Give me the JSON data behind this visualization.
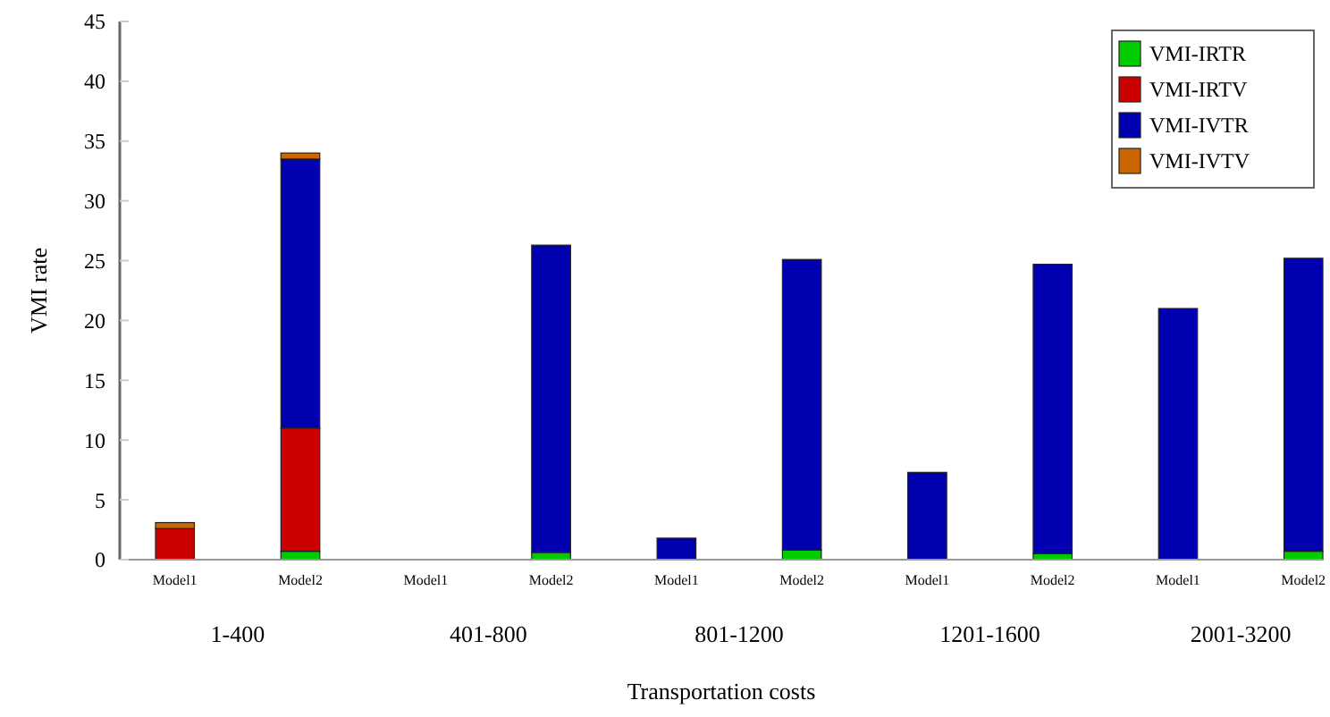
{
  "chart_data": {
    "type": "bar",
    "stacked": true,
    "xlabel": "Transportation costs",
    "ylabel": "VMI rate",
    "categories": [
      "Model1",
      "Model2",
      "Model1",
      "Model2",
      "Model1",
      "Model2",
      "Model1",
      "Model2",
      "Model1",
      "Model2"
    ],
    "series": [
      {
        "name": "VMI-IRTR",
        "color": "#00cc00",
        "values": [
          0,
          0.7,
          0,
          0.6,
          0,
          0.8,
          0,
          0.5,
          0,
          0.7
        ]
      },
      {
        "name": "VMI-IRTV",
        "color": "#cc0000",
        "values": [
          2.6,
          10.3,
          0,
          0,
          0,
          0,
          0,
          0,
          0,
          0
        ]
      },
      {
        "name": "VMI-IVTR",
        "color": "#0000b0",
        "values": [
          0,
          22.5,
          0,
          25.7,
          1.8,
          24.3,
          7.3,
          24.2,
          21,
          24.5
        ]
      },
      {
        "name": "VMI-IVTV",
        "color": "#cc6600",
        "values": [
          0.5,
          0.5,
          0,
          0,
          0,
          0,
          0,
          0,
          0,
          0
        ]
      }
    ],
    "annotations": [
      "1-400",
      "401-800",
      "801-1200",
      "1201-1600",
      "2001-3200"
    ],
    "ylim": [
      0,
      45
    ],
    "yticks": [
      0,
      5,
      10,
      15,
      20,
      25,
      30,
      35,
      40,
      45
    ],
    "grid": false,
    "legend": "top right"
  }
}
